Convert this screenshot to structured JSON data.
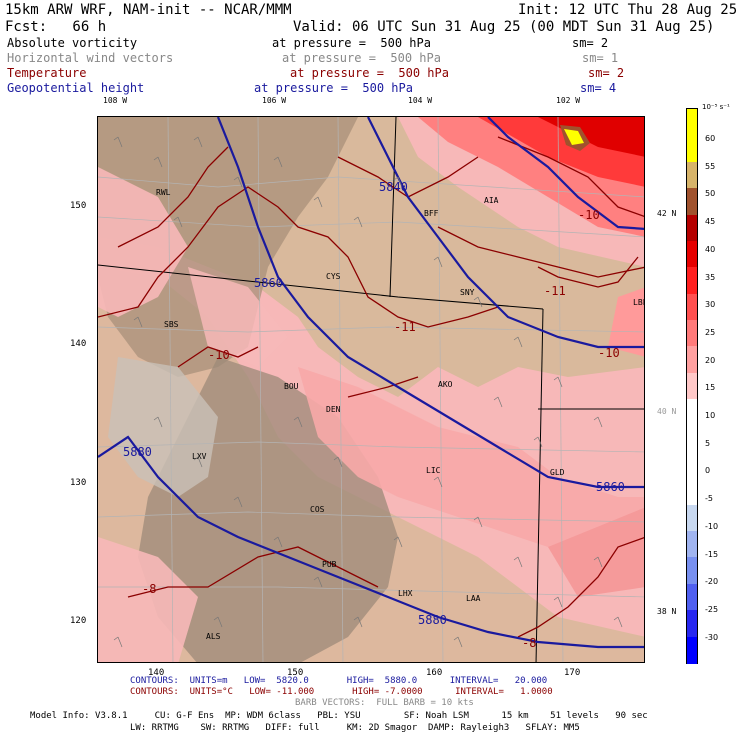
{
  "header": {
    "line1_left": "15km ARW WRF, NAM-init -- NCAR/MMM",
    "line1_right": "Init: 12 UTC Thu 28 Aug 25",
    "line2_left": "Fcst:   66 h",
    "line2_right": "Valid: 06 UTC Sun 31 Aug 25 (00 MDT Sun 31 Aug 25)"
  },
  "fields": [
    {
      "name": "Absolute vorticity",
      "level": "at pressure =  500 hPa",
      "sm": "sm= 2",
      "color": "#000000"
    },
    {
      "name": "Horizontal wind vectors",
      "level": "at pressure =  500 hPa",
      "sm": "sm= 1",
      "color": "#888888"
    },
    {
      "name": "Temperature",
      "level": "at pressure =  500 hPa",
      "sm": "sm= 2",
      "color": "#8b0000"
    },
    {
      "name": "Geopotential height",
      "level": "at pressure =  500 hPa",
      "sm": "sm= 4",
      "color": "#1a1a9e"
    }
  ],
  "map": {
    "lon_labels": [
      "108 W",
      "106 W",
      "104 W",
      "102 W"
    ],
    "lat_labels": [
      "42 N",
      "40 N",
      "38 N"
    ],
    "y_ticks": [
      "150",
      "140",
      "130",
      "120"
    ],
    "x_ticks": [
      "140",
      "150",
      "160",
      "170"
    ],
    "cities": [
      "RWL",
      "BFF",
      "AIA",
      "CYS",
      "SNY",
      "LBF",
      "SBS",
      "BOU",
      "AKO",
      "DEN",
      "LXV",
      "LIC",
      "GLD",
      "COS",
      "PUB",
      "LHX",
      "LAA",
      "ALS"
    ],
    "height_labels": [
      "5840",
      "5860",
      "5880",
      "5860",
      "5880"
    ],
    "temp_labels": [
      "-10",
      "-11",
      "-11",
      "-10",
      "-10",
      "-8",
      "-8"
    ]
  },
  "colorbar": {
    "unit": "10⁻⁵ s⁻¹",
    "labels": [
      "60",
      "55",
      "50",
      "45",
      "40",
      "35",
      "30",
      "25",
      "20",
      "15",
      "10",
      "5",
      "0",
      "-5",
      "-10",
      "-15",
      "-20",
      "-25",
      "-30"
    ],
    "colors": [
      "#ffff00",
      "#ffff00",
      "#d7b46a",
      "#a0522d",
      "#b40000",
      "#e60000",
      "#ff2020",
      "#ff5050",
      "#ff7a7a",
      "#ffa0a0",
      "#ffc8c8",
      "#ffffff",
      "#ffffff",
      "#ffffff",
      "#ffffff",
      "#c8d8f0",
      "#a0b4f0",
      "#7890f0",
      "#5060f0",
      "#2828f0",
      "#0000ff"
    ]
  },
  "footer": {
    "contours_height": "CONTOURS:  UNITS=m   LOW=  5820.0       HIGH=  5880.0      INTERVAL=   20.000",
    "contours_temp": "CONTOURS:  UNITS=°C   LOW= -11.000       HIGH= -7.0000      INTERVAL=   1.0000",
    "barb_vectors": "BARB VECTORS:  FULL BARB = 10 kts",
    "model_info_1": "Model Info: V3.8.1     CU: G-F Ens  MP: WDM 6class   PBL: YSU        SF: Noah LSM      15 km    51 levels   90 sec",
    "model_info_2": "LW: RRTMG    SW: RRTMG   DIFF: full     KM: 2D Smagor  DAMP: Rayleigh3   SFLAY: MM5"
  }
}
